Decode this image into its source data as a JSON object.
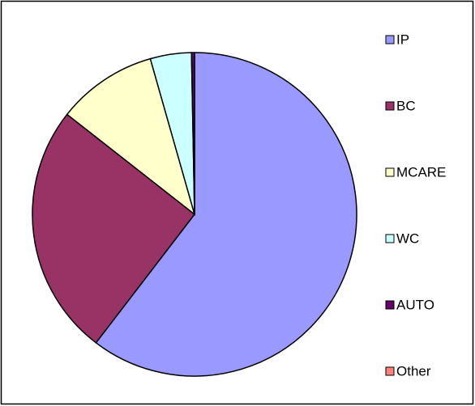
{
  "chart_data": {
    "type": "pie",
    "categories": [
      "IP",
      "BC",
      "MCARE",
      "WC",
      "AUTO",
      "Other"
    ],
    "values": [
      60.4,
      25.2,
      10.0,
      4.1,
      0.3,
      0
    ],
    "colors": [
      "#9999ff",
      "#993366",
      "#ffffcc",
      "#ccffff",
      "#660066",
      "#ff8080"
    ],
    "legend": "right"
  }
}
